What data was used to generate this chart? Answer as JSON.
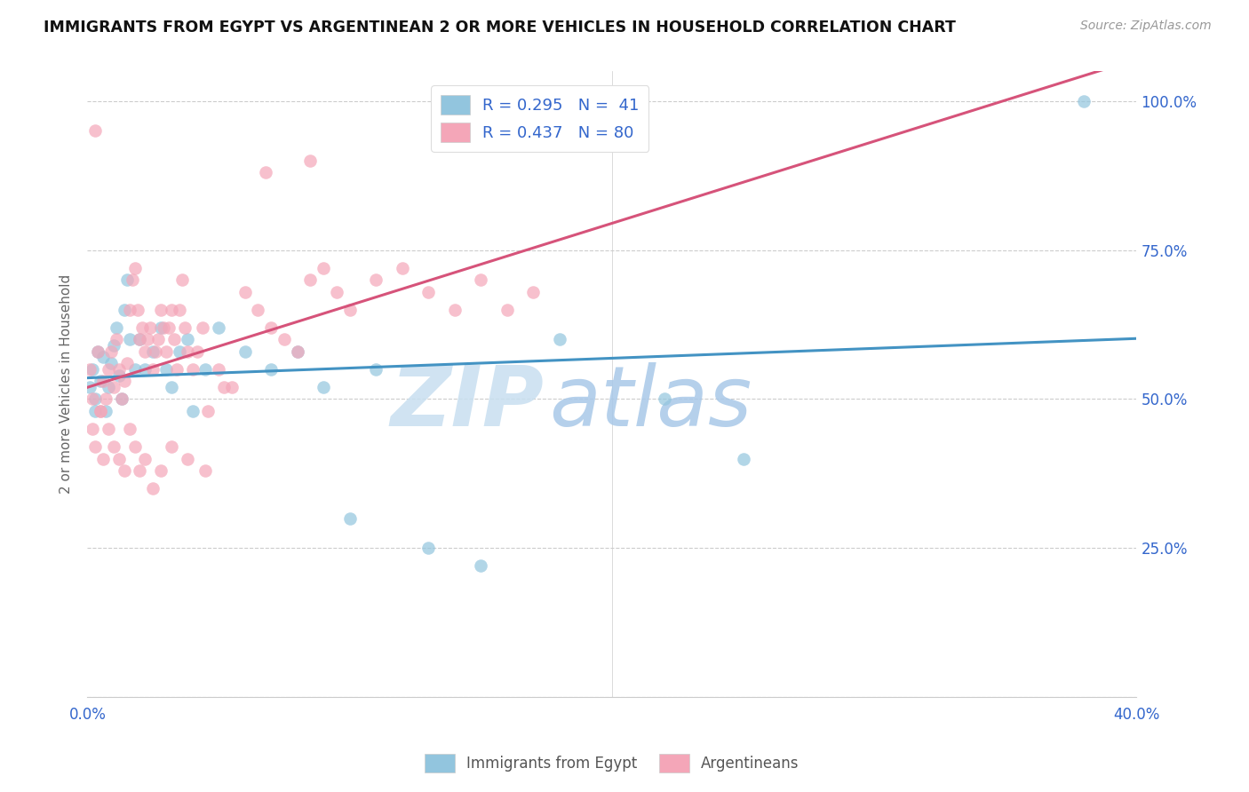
{
  "title": "IMMIGRANTS FROM EGYPT VS ARGENTINEAN 2 OR MORE VEHICLES IN HOUSEHOLD CORRELATION CHART",
  "source": "Source: ZipAtlas.com",
  "ylabel": "2 or more Vehicles in Household",
  "legend_r1": "R = 0.295",
  "legend_n1": "N =  41",
  "legend_r2": "R = 0.437",
  "legend_n2": "N = 80",
  "blue_color": "#92c5de",
  "pink_color": "#f4a6b8",
  "blue_line_color": "#4393c3",
  "pink_line_color": "#d6537a",
  "watermark_zip": "ZIP",
  "watermark_atlas": "atlas",
  "xlim": [
    0.0,
    0.4
  ],
  "ylim": [
    0.0,
    1.05
  ],
  "blue_scatter_x": [
    0.001,
    0.002,
    0.003,
    0.004,
    0.005,
    0.006,
    0.007,
    0.008,
    0.009,
    0.01,
    0.011,
    0.012,
    0.013,
    0.014,
    0.015,
    0.016,
    0.018,
    0.02,
    0.022,
    0.025,
    0.028,
    0.03,
    0.032,
    0.035,
    0.038,
    0.04,
    0.045,
    0.05,
    0.06,
    0.07,
    0.08,
    0.09,
    0.1,
    0.11,
    0.13,
    0.15,
    0.18,
    0.22,
    0.25,
    0.38,
    0.003
  ],
  "blue_scatter_y": [
    0.52,
    0.55,
    0.5,
    0.58,
    0.53,
    0.57,
    0.48,
    0.52,
    0.56,
    0.59,
    0.62,
    0.54,
    0.5,
    0.65,
    0.7,
    0.6,
    0.55,
    0.6,
    0.55,
    0.58,
    0.62,
    0.55,
    0.52,
    0.58,
    0.6,
    0.48,
    0.55,
    0.62,
    0.58,
    0.55,
    0.58,
    0.52,
    0.3,
    0.55,
    0.25,
    0.22,
    0.6,
    0.5,
    0.4,
    1.0,
    0.48
  ],
  "pink_scatter_x": [
    0.001,
    0.002,
    0.003,
    0.004,
    0.005,
    0.006,
    0.007,
    0.008,
    0.009,
    0.01,
    0.011,
    0.012,
    0.013,
    0.014,
    0.015,
    0.016,
    0.017,
    0.018,
    0.019,
    0.02,
    0.021,
    0.022,
    0.023,
    0.024,
    0.025,
    0.026,
    0.027,
    0.028,
    0.029,
    0.03,
    0.031,
    0.032,
    0.033,
    0.034,
    0.035,
    0.036,
    0.037,
    0.038,
    0.04,
    0.042,
    0.044,
    0.046,
    0.05,
    0.055,
    0.06,
    0.065,
    0.07,
    0.075,
    0.08,
    0.085,
    0.09,
    0.095,
    0.1,
    0.11,
    0.12,
    0.13,
    0.14,
    0.15,
    0.16,
    0.17,
    0.002,
    0.003,
    0.005,
    0.006,
    0.008,
    0.01,
    0.012,
    0.014,
    0.016,
    0.018,
    0.02,
    0.022,
    0.025,
    0.028,
    0.032,
    0.038,
    0.045,
    0.052,
    0.068,
    0.085
  ],
  "pink_scatter_y": [
    0.55,
    0.5,
    0.95,
    0.58,
    0.48,
    0.53,
    0.5,
    0.55,
    0.58,
    0.52,
    0.6,
    0.55,
    0.5,
    0.53,
    0.56,
    0.65,
    0.7,
    0.72,
    0.65,
    0.6,
    0.62,
    0.58,
    0.6,
    0.62,
    0.55,
    0.58,
    0.6,
    0.65,
    0.62,
    0.58,
    0.62,
    0.65,
    0.6,
    0.55,
    0.65,
    0.7,
    0.62,
    0.58,
    0.55,
    0.58,
    0.62,
    0.48,
    0.55,
    0.52,
    0.68,
    0.65,
    0.62,
    0.6,
    0.58,
    0.7,
    0.72,
    0.68,
    0.65,
    0.7,
    0.72,
    0.68,
    0.65,
    0.7,
    0.65,
    0.68,
    0.45,
    0.42,
    0.48,
    0.4,
    0.45,
    0.42,
    0.4,
    0.38,
    0.45,
    0.42,
    0.38,
    0.4,
    0.35,
    0.38,
    0.42,
    0.4,
    0.38,
    0.52,
    0.88,
    0.9
  ]
}
